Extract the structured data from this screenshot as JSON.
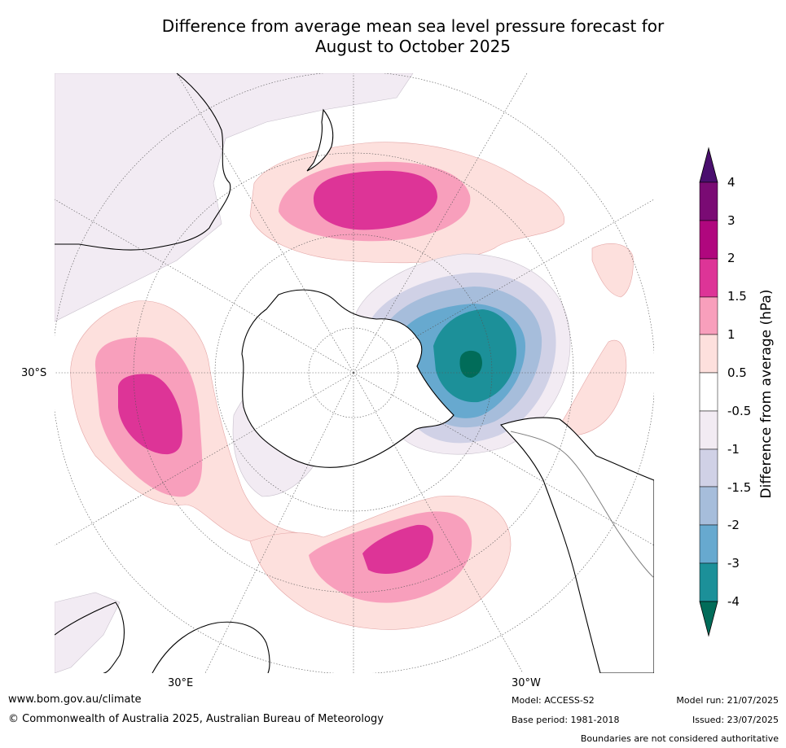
{
  "title_line1": "Difference from average mean sea level pressure forecast for",
  "title_line2": "August to October 2025",
  "graticule": {
    "lat_label": "30°S",
    "lon_labels": [
      "30°E",
      "30°W"
    ]
  },
  "colorbar": {
    "label": "Difference from average (hPa)",
    "ticks": [
      "4",
      "3",
      "2",
      "1.5",
      "1",
      "0.5",
      "-0.5",
      "-1",
      "-1.5",
      "-2",
      "-3",
      "-4"
    ],
    "colors": {
      "above_4": "#4a0f6e",
      "3_to_4": "#7a0b74",
      "2_to_3": "#b0077e",
      "1.5_to_2": "#dd3497",
      "1_to_1.5": "#f89fbc",
      "0.5_to_1": "#fde0dd",
      "-0.5_to_0.5": "#ffffff",
      "-1_to_-0.5": "#f2ebf3",
      "-1.5_to_-1": "#d0d1e6",
      "-2_to_-1.5": "#a6bddb",
      "-3_to_-2": "#67a9cf",
      "-4_to_-3": "#1c9099",
      "below_-4": "#016c59"
    }
  },
  "footer": {
    "website": "www.bom.gov.au/climate",
    "copyright": "© Commonwealth of Australia 2025, Australian Bureau of Meteorology",
    "model": "Model: ACCESS-S2",
    "base_period": "Base period: 1981-2018",
    "model_run": "Model run: 21/07/2025",
    "issued": "Issued: 23/07/2025",
    "disclaimer": "Boundaries are not considered authoritative"
  }
}
